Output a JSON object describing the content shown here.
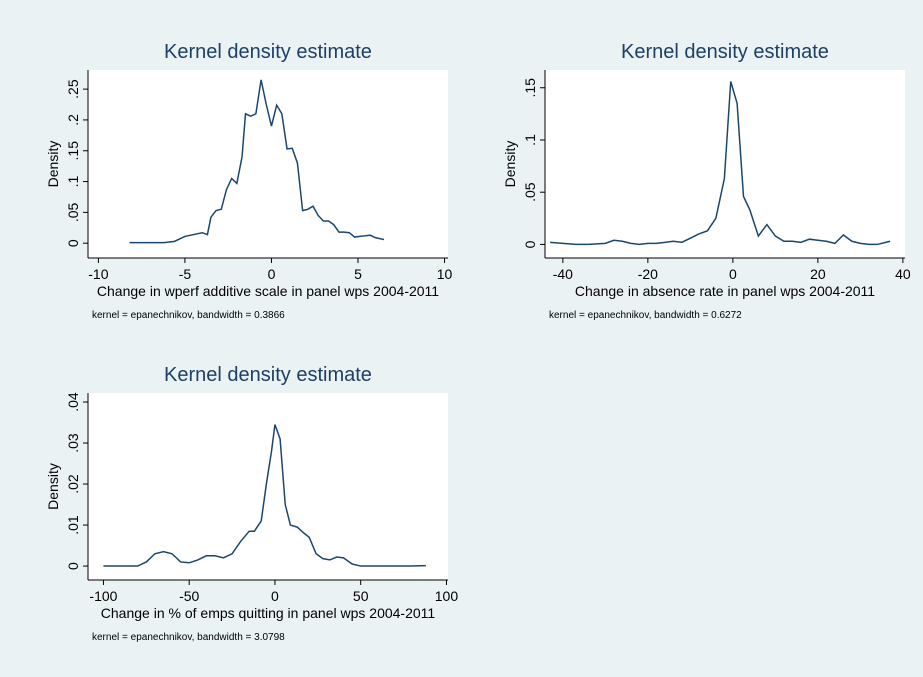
{
  "chart_data": [
    {
      "type": "line",
      "title": "Kernel density estimate",
      "xlabel": "Change in wperf additive scale in panel wps 2004-2011",
      "ylabel": "Density",
      "note": "kernel = epanechnikov, bandwidth = 0.3866",
      "color": "#1a476f",
      "x": [
        -8.2,
        -7,
        -6.2,
        -5.6,
        -5,
        -4.5,
        -4,
        -3.7,
        -3.5,
        -3.2,
        -2.9,
        -2.6,
        -2.3,
        -2,
        -1.7,
        -1.5,
        -1.2,
        -0.9,
        -0.6,
        -0.3,
        0,
        0.3,
        0.6,
        0.9,
        1.2,
        1.5,
        1.8,
        2.1,
        2.4,
        2.7,
        3,
        3.3,
        3.6,
        3.9,
        4.2,
        4.5,
        4.8,
        5.1,
        5.4,
        5.7,
        6,
        6.5
      ],
      "values": [
        0.001,
        0.001,
        0.001,
        0.003,
        0.011,
        0.014,
        0.017,
        0.014,
        0.042,
        0.053,
        0.055,
        0.087,
        0.105,
        0.097,
        0.14,
        0.21,
        0.206,
        0.21,
        0.265,
        0.225,
        0.19,
        0.224,
        0.21,
        0.153,
        0.154,
        0.13,
        0.053,
        0.055,
        0.06,
        0.045,
        0.036,
        0.036,
        0.03,
        0.018,
        0.018,
        0.017,
        0.01,
        0.011,
        0.012,
        0.013,
        0.009,
        0.006
      ],
      "xlim": [
        -10.6,
        10.2
      ],
      "ylim": [
        -0.024,
        0.281
      ],
      "xticks": [
        -10,
        -5,
        0,
        5,
        10
      ],
      "yticks": [
        0,
        {
          "value": 0.05,
          "label": ".05"
        },
        {
          "value": 0.1,
          "label": ".1"
        },
        {
          "value": 0.15,
          "label": ".15"
        },
        {
          "value": 0.2,
          "label": ".2"
        },
        {
          "value": 0.25,
          "label": ".25"
        }
      ]
    },
    {
      "type": "line",
      "title": "Kernel density estimate",
      "xlabel": "Change in absence rate in panel wps 2004-2011",
      "ylabel": "Density",
      "note": "kernel = epanechnikov, bandwidth = 0.6272",
      "color": "#1a476f",
      "x": [
        -43,
        -40,
        -37,
        -34,
        -30,
        -28,
        -26,
        -24,
        -22,
        -20,
        -18,
        -16,
        -14,
        -12,
        -10,
        -8,
        -6,
        -4,
        -2,
        -0.5,
        1,
        2.5,
        4,
        6,
        8,
        10,
        12,
        14,
        16,
        18,
        20,
        22,
        24,
        26,
        28,
        30,
        32,
        34,
        37
      ],
      "values": [
        0.002,
        0.001,
        0,
        0,
        0.001,
        0.004,
        0.003,
        0.001,
        0,
        0.001,
        0.001,
        0.002,
        0.003,
        0.002,
        0.006,
        0.01,
        0.013,
        0.025,
        0.063,
        0.156,
        0.135,
        0.046,
        0.033,
        0.008,
        0.019,
        0.008,
        0.003,
        0.003,
        0.002,
        0.005,
        0.004,
        0.003,
        0.001,
        0.009,
        0.003,
        0.001,
        0,
        0,
        0.003
      ],
      "xlim": [
        -44.2,
        40.5
      ],
      "ylim": [
        -0.013,
        0.167
      ],
      "xticks": [
        -40,
        -20,
        0,
        20,
        40
      ],
      "yticks": [
        0,
        {
          "value": 0.05,
          "label": ".05"
        },
        {
          "value": 0.1,
          "label": ".1"
        },
        {
          "value": 0.15,
          "label": ".15"
        }
      ]
    },
    {
      "type": "line",
      "title": "Kernel density estimate",
      "xlabel": "Change in % of emps quitting in panel wps 2004-2011",
      "ylabel": "Density",
      "note": "kernel = epanechnikov, bandwidth = 3.0798",
      "color": "#1a476f",
      "x": [
        -100,
        -90,
        -80,
        -75,
        -70,
        -65,
        -60,
        -55,
        -50,
        -45,
        -40,
        -35,
        -30,
        -25,
        -20,
        -15,
        -12,
        -8,
        -5,
        -2,
        0,
        3,
        6,
        9,
        13,
        17,
        20,
        24,
        28,
        32,
        36,
        40,
        45,
        50,
        60,
        70,
        80,
        88
      ],
      "values": [
        0,
        0,
        0,
        0.001,
        0.003,
        0.0035,
        0.003,
        0.001,
        0.0008,
        0.0015,
        0.0025,
        0.0025,
        0.002,
        0.003,
        0.006,
        0.0085,
        0.0085,
        0.011,
        0.02,
        0.028,
        0.0345,
        0.031,
        0.015,
        0.01,
        0.0095,
        0.008,
        0.007,
        0.003,
        0.0018,
        0.0015,
        0.0022,
        0.002,
        0.0005,
        0,
        0,
        0,
        0,
        0.0001
      ],
      "xlim": [
        -109,
        100.9
      ],
      "ylim": [
        -0.0034,
        0.0422
      ],
      "xticks": [
        -100,
        -50,
        0,
        50,
        100
      ],
      "yticks": [
        0,
        {
          "value": 0.01,
          "label": ".01"
        },
        {
          "value": 0.02,
          "label": ".02"
        },
        {
          "value": 0.03,
          "label": ".03"
        },
        {
          "value": 0.04,
          "label": ".04"
        }
      ]
    }
  ]
}
